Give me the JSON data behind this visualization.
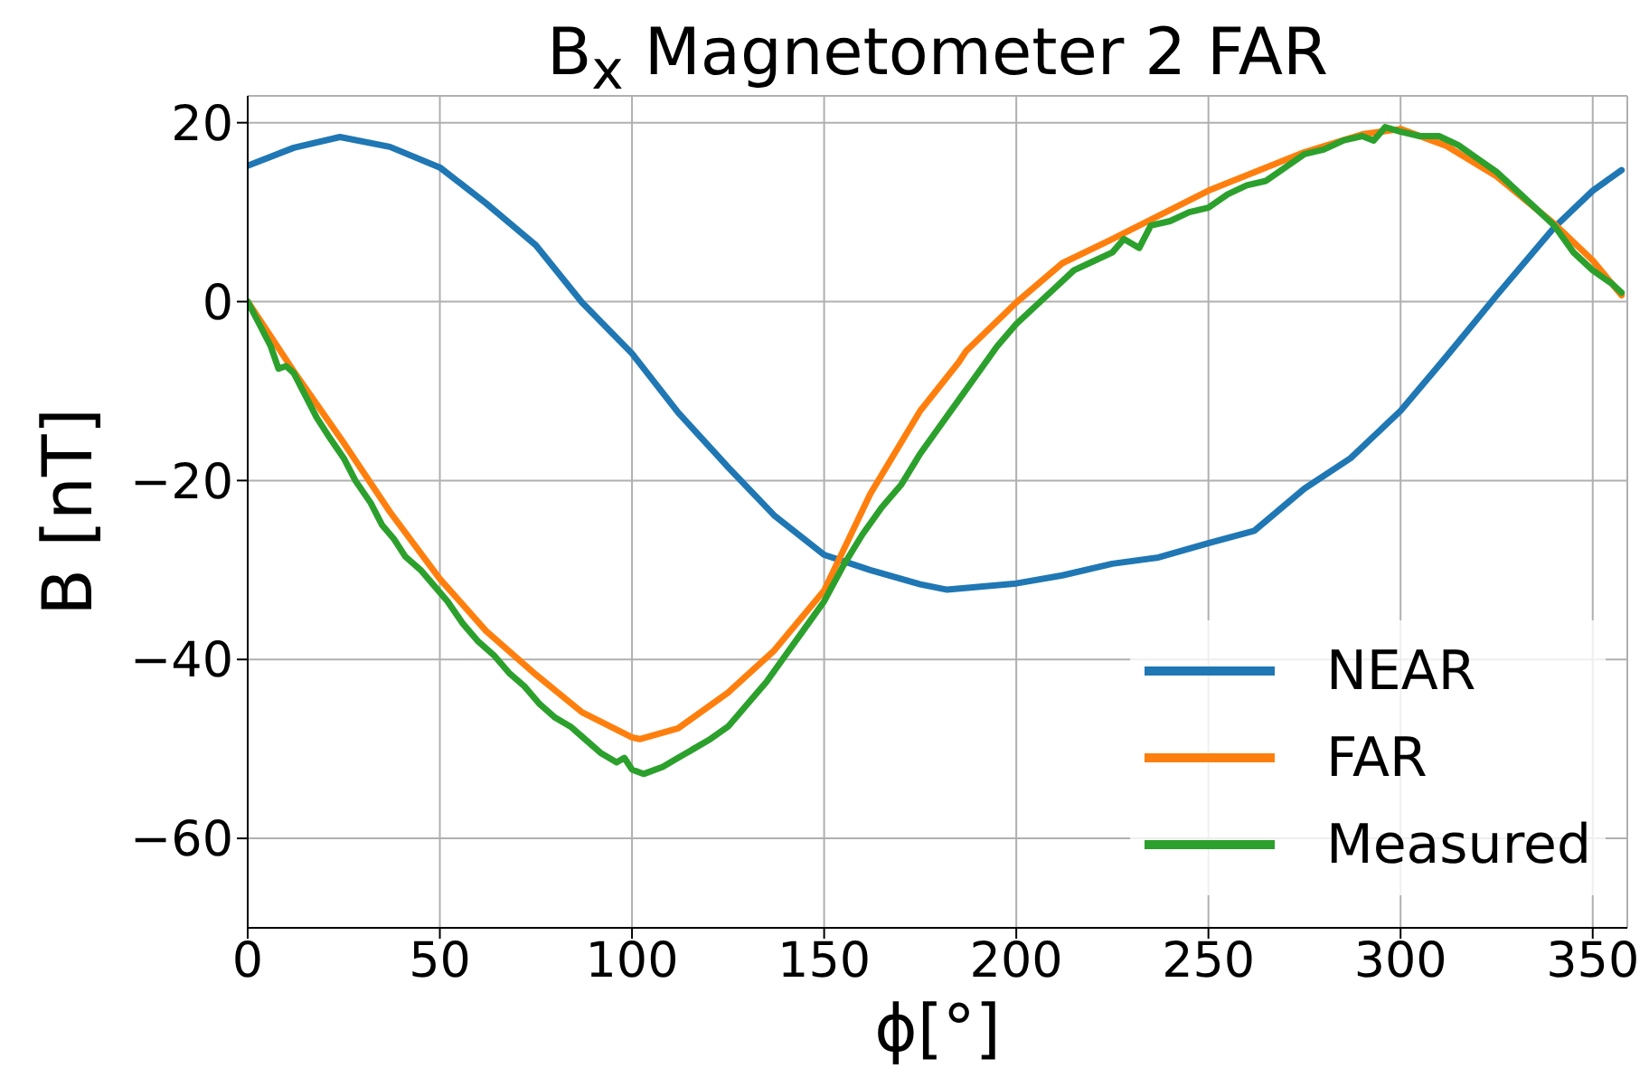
{
  "chart_data": {
    "type": "line",
    "title": "B$_{x}$ Magnetometer 2 FAR",
    "xlabel": "ϕ[°]",
    "ylabel": "B [nT]",
    "xlim": [
      0,
      359
    ],
    "ylim": [
      -70,
      23
    ],
    "xticks": [
      0,
      50,
      100,
      150,
      200,
      250,
      300,
      350
    ],
    "yticks": [
      -60,
      -40,
      -20,
      0,
      20
    ],
    "grid": true,
    "legend": "bottom right",
    "line_style": "solid",
    "marker": "none",
    "series": [
      {
        "name": "NEAR",
        "color": "#1f77b4",
        "x": [
          0,
          12,
          24,
          37,
          50,
          62,
          75,
          87,
          100,
          112,
          125,
          137,
          150,
          162,
          175,
          182,
          200,
          212,
          225,
          237,
          250,
          262,
          275,
          287,
          300,
          312,
          325,
          340,
          350,
          357.5
        ],
        "values": [
          15.2,
          17.2,
          18.4,
          17.3,
          15.0,
          11.0,
          6.3,
          -0.1,
          -5.8,
          -12.4,
          -18.5,
          -23.9,
          -28.3,
          -30.0,
          -31.6,
          -32.2,
          -31.5,
          -30.6,
          -29.3,
          -28.6,
          -27.0,
          -25.6,
          -20.9,
          -17.5,
          -12.2,
          -6.1,
          0.7,
          8.3,
          12.4,
          14.7
        ]
      },
      {
        "name": "FAR",
        "color": "#ff7f0e",
        "x": [
          0,
          12,
          25,
          37,
          50,
          62,
          75,
          87,
          100,
          102,
          112,
          125,
          137,
          150,
          162,
          175,
          185,
          187,
          200,
          212,
          225,
          250,
          275,
          290,
          300,
          312,
          325,
          340,
          350,
          357.5
        ],
        "values": [
          0,
          -7.8,
          -15.8,
          -23.5,
          -31.0,
          -36.8,
          -41.7,
          -45.9,
          -48.7,
          -48.9,
          -47.7,
          -43.7,
          -39.0,
          -32.3,
          -21.5,
          -12.2,
          -6.8,
          -5.5,
          -0.1,
          4.3,
          7.0,
          12.4,
          16.7,
          18.7,
          19.3,
          17.4,
          14.0,
          8.7,
          4.6,
          0.7
        ]
      },
      {
        "name": "Measured",
        "color": "#2ca02c",
        "x": [
          0,
          3,
          6,
          8,
          10,
          12,
          15,
          18,
          21,
          25,
          28,
          32,
          35,
          38,
          41,
          45,
          48,
          52,
          56,
          60,
          64,
          68,
          72,
          76,
          80,
          84,
          88,
          92,
          96,
          98,
          100,
          103,
          108,
          112,
          116,
          120,
          125,
          130,
          135,
          140,
          145,
          150,
          155,
          160,
          165,
          170,
          175,
          180,
          185,
          190,
          195,
          200,
          205,
          210,
          215,
          220,
          225,
          228,
          232,
          235,
          240,
          245,
          250,
          255,
          260,
          265,
          270,
          275,
          280,
          285,
          290,
          293,
          296,
          300,
          305,
          310,
          315,
          320,
          325,
          330,
          335,
          340,
          345,
          350,
          355,
          357.5
        ],
        "values": [
          0,
          -2.5,
          -5,
          -7.5,
          -7.2,
          -8,
          -10.5,
          -13,
          -15,
          -17.5,
          -20,
          -22.5,
          -25,
          -26.5,
          -28.5,
          -30,
          -31.5,
          -33.5,
          -36,
          -38,
          -39.5,
          -41.5,
          -43,
          -45,
          -46.5,
          -47.5,
          -49,
          -50.5,
          -51.5,
          -51,
          -52.3,
          -52.8,
          -52,
          -51,
          -50,
          -49,
          -47.5,
          -45,
          -42.5,
          -39.5,
          -36.5,
          -33.5,
          -29.5,
          -26,
          -23,
          -20.5,
          -17,
          -14,
          -11,
          -8,
          -5,
          -2.5,
          -0.5,
          1.5,
          3.5,
          4.5,
          5.5,
          7,
          6,
          8.5,
          9,
          10,
          10.5,
          12,
          13,
          13.5,
          15,
          16.5,
          17,
          18,
          18.5,
          18,
          19.5,
          19,
          18.5,
          18.5,
          17.5,
          16,
          14.5,
          12.5,
          10.5,
          8.5,
          5.5,
          3.5,
          2,
          1
        ]
      }
    ]
  }
}
